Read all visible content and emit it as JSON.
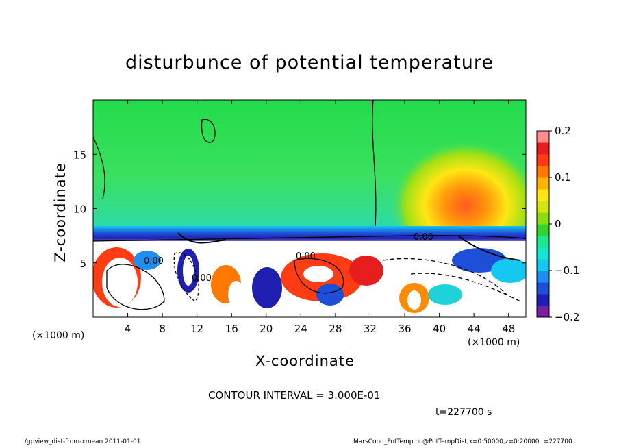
{
  "chart_data": {
    "type": "heatmap",
    "title": "disturbunce of potential temperature",
    "xlabel": "X-coordinate",
    "ylabel": "Z-coordinate",
    "x_unit_label": "(×1000 m)",
    "xlim": [
      0,
      50
    ],
    "ylim": [
      0,
      20
    ],
    "x_ticks": [
      4,
      8,
      12,
      16,
      20,
      24,
      28,
      32,
      36,
      40,
      44,
      48
    ],
    "y_ticks": [
      5,
      10,
      15
    ],
    "colorbar": {
      "range": [
        -0.2,
        0.2
      ],
      "tick_values": [
        0.2,
        0.1,
        0,
        -0.1,
        -0.2
      ],
      "tick_labels": [
        "0.2",
        "0.1",
        "0",
        "−0.1",
        "−0.2"
      ],
      "colors": [
        "#7a1fa2",
        "#2020b0",
        "#1e4fd8",
        "#1e8ff0",
        "#14c8f0",
        "#14e6d2",
        "#1ee68c",
        "#32d232",
        "#8cdc14",
        "#d2e614",
        "#ffe614",
        "#ffb400",
        "#ff7800",
        "#ff3c14",
        "#e61e1e",
        "#ff8c8c"
      ]
    },
    "contour_labels": [
      "0.00",
      "0.00",
      "0.00",
      "0.00"
    ],
    "features": {
      "stable_layer_top_z": 7.0,
      "warm_anomaly_center": [
        43,
        10
      ],
      "warm_anomaly_max": 0.15
    },
    "contour_interval_text": "CONTOUR INTERVAL = 3.000E-01"
  },
  "annotations": {
    "time": "t=227700 s",
    "footer_left": "./gpview_dist-from-xmean  2011-01-01",
    "footer_right": "MarsCond_PotTemp.nc@PotTempDist,x=0:50000,z=0:20000,t=227700"
  }
}
